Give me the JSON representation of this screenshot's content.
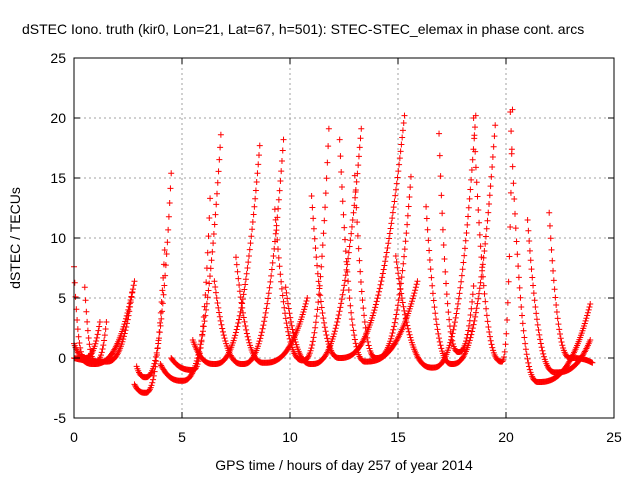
{
  "chart_data": {
    "type": "scatter",
    "title": "dSTEC Iono. truth (kir0, Lon=21, Lat=67, h=501): STEC-STEC_elemax in phase cont. arcs",
    "xlabel": "GPS time / hours of day 257 of year 2014",
    "ylabel": "dSTEC  / TECUs",
    "xlim": [
      0,
      25
    ],
    "ylim": [
      -5,
      25
    ],
    "xticks": [
      0,
      5,
      10,
      15,
      20,
      25
    ],
    "yticks": [
      -5,
      0,
      5,
      10,
      15,
      20,
      25
    ],
    "grid": true,
    "marker": "+",
    "series_color": "#ff0000",
    "arc_note": "Points approximate many satellite phase arcs; each arc listed as [start_x, start_y, min_x, min_y, end_x, end_y]",
    "arcs": [
      [
        0.0,
        7.6,
        0.5,
        0.0,
        1.2,
        3.0
      ],
      [
        0.5,
        5.9,
        1.0,
        -0.3,
        1.5,
        3.0
      ],
      [
        0.0,
        1.2,
        0.9,
        -0.5,
        2.8,
        6.4
      ],
      [
        0.0,
        0.0,
        1.5,
        -0.3,
        2.7,
        5.5
      ],
      [
        2.9,
        -0.7,
        3.3,
        -1.6,
        4.5,
        15.4
      ],
      [
        2.8,
        -2.2,
        3.3,
        -2.9,
        4.2,
        9.0
      ],
      [
        4.0,
        -0.5,
        5.0,
        -1.9,
        6.8,
        18.6
      ],
      [
        4.5,
        0.0,
        5.5,
        -1.0,
        6.3,
        13.3
      ],
      [
        5.5,
        1.5,
        6.5,
        -0.5,
        8.6,
        17.7
      ],
      [
        6.5,
        6.4,
        7.8,
        -0.5,
        9.7,
        18.2
      ],
      [
        7.5,
        8.4,
        8.8,
        -0.4,
        10.8,
        5.0
      ],
      [
        9.3,
        12.4,
        10.6,
        -0.2,
        11.8,
        19.1
      ],
      [
        9.8,
        5.9,
        11.0,
        -0.5,
        13.3,
        19.1
      ],
      [
        11.0,
        13.5,
        12.3,
        0.0,
        15.3,
        20.2
      ],
      [
        12.3,
        18.2,
        13.5,
        -0.3,
        15.9,
        6.4
      ],
      [
        13.0,
        15.2,
        14.0,
        0.0,
        15.6,
        15.1
      ],
      [
        14.9,
        8.5,
        16.6,
        -0.8,
        18.6,
        20.2
      ],
      [
        16.3,
        12.6,
        17.5,
        -0.5,
        19.5,
        19.4
      ],
      [
        16.9,
        18.7,
        17.8,
        0.5,
        18.5,
        6.0
      ],
      [
        18.5,
        20.0,
        19.8,
        -0.3,
        20.3,
        20.7
      ],
      [
        20.2,
        20.5,
        21.5,
        -2.0,
        23.9,
        4.5
      ],
      [
        21.0,
        11.5,
        22.3,
        -1.2,
        23.9,
        1.5
      ],
      [
        22.0,
        12.1,
        23.0,
        0.0,
        24.0,
        -0.4
      ]
    ]
  }
}
